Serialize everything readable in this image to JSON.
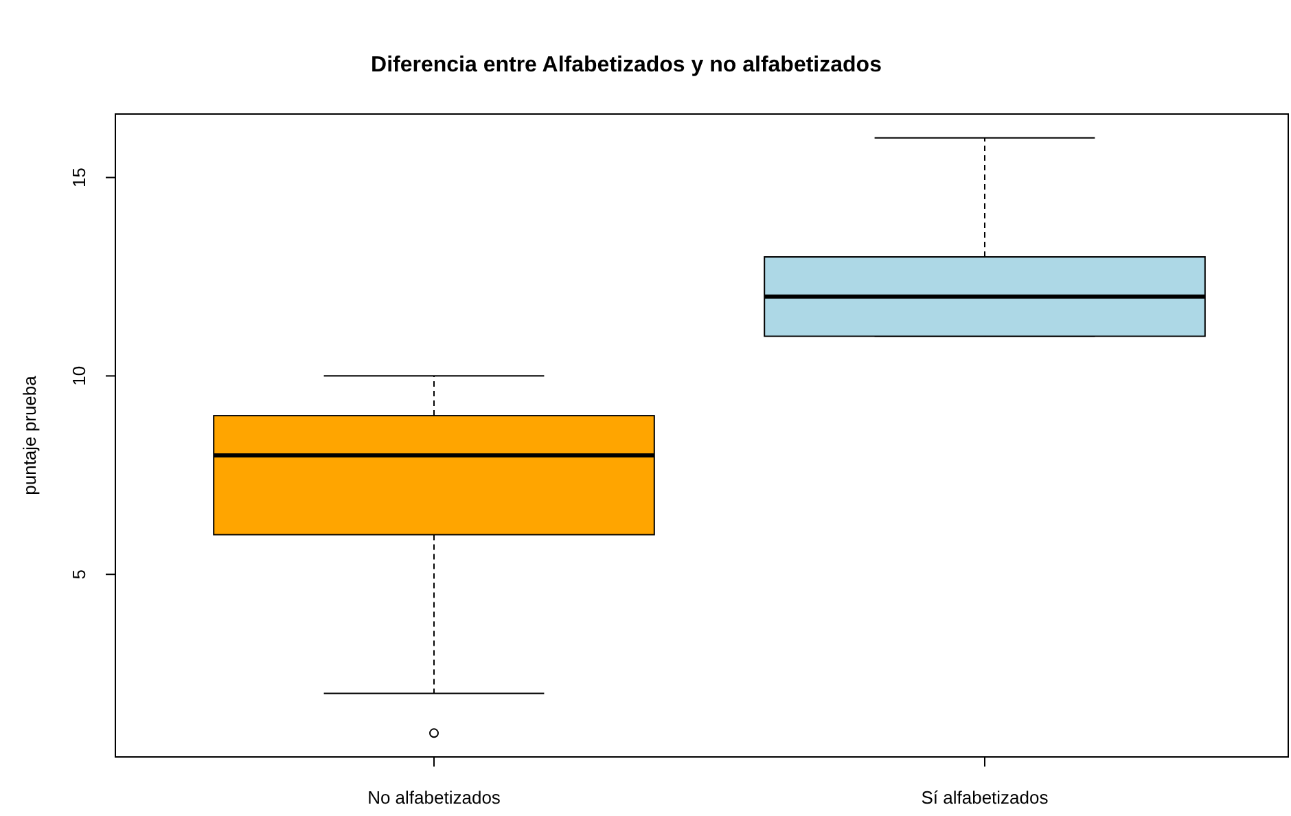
{
  "chart_data": {
    "type": "box",
    "title": "Diferencia entre Alfabetizados y no alfabetizados",
    "ylabel": "puntaje prueba",
    "categories": [
      "No alfabetizados",
      "Sí alfabetizados"
    ],
    "colors": [
      "#ffa500",
      "#add8e6"
    ],
    "boxes": [
      {
        "low": 2,
        "q1": 6,
        "median": 8,
        "q3": 9,
        "high": 10,
        "outliers": [
          1
        ]
      },
      {
        "low": 11,
        "q1": 11,
        "median": 12,
        "q3": 13,
        "high": 16
      }
    ],
    "ylim": [
      0.4,
      16.6
    ],
    "yticks": [
      5,
      10,
      15
    ],
    "grid": false
  }
}
